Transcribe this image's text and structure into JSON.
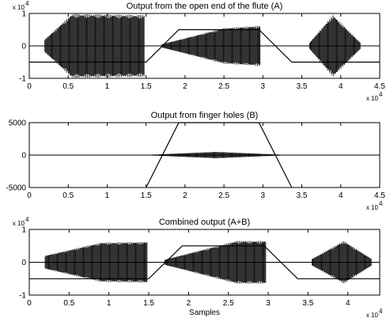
{
  "chart_data": [
    {
      "type": "line",
      "title": "Output from the open end of the flute (A)",
      "ylim": [
        -1,
        1
      ],
      "y_multiplier": "x 10",
      "y_exponent": "4",
      "yticks": [
        {
          "value": 1,
          "label": "1"
        },
        {
          "value": 0,
          "label": "0"
        },
        {
          "value": -1,
          "label": "-1"
        }
      ],
      "xlim": [
        0,
        4.5
      ],
      "x_multiplier": "x 10",
      "x_exponent": "4",
      "xticks": [
        {
          "value": 0,
          "label": "0"
        },
        {
          "value": 0.5,
          "label": "0.5"
        },
        {
          "value": 1,
          "label": "1"
        },
        {
          "value": 1.5,
          "label": "1.5"
        },
        {
          "value": 2,
          "label": "2"
        },
        {
          "value": 2.5,
          "label": "2.5"
        },
        {
          "value": 3,
          "label": "3"
        },
        {
          "value": 3.5,
          "label": "3.5"
        },
        {
          "value": 4,
          "label": "4"
        },
        {
          "value": 4.5,
          "label": "4.5"
        }
      ],
      "xlabel": "",
      "envelope_segments": [
        {
          "x0": 0.2,
          "x1": 1.48,
          "amp_start": 0.2,
          "amp_peak": 0.98,
          "rise_end": 0.55,
          "amp_end": 0.95
        },
        {
          "x0": 1.7,
          "x1": 2.97,
          "amp_start": 0.05,
          "amp_peak": 0.55,
          "rise_end": 2.5,
          "amp_end": 0.62
        },
        {
          "x0": 3.6,
          "x1": 4.25,
          "amp_start": 0.1,
          "amp_peak": 0.95,
          "rise_end": 3.9,
          "amp_end": 0.1
        }
      ],
      "control_signal": {
        "x": [
          0,
          1.5,
          1.92,
          2.95,
          3.37,
          4.5
        ],
        "y": [
          -0.5,
          -0.5,
          0.5,
          0.5,
          -0.5,
          -0.5
        ]
      }
    },
    {
      "type": "line",
      "title": "Output from finger holes (B)",
      "ylim": [
        -5000,
        5000
      ],
      "yticks": [
        {
          "value": 5000,
          "label": "5000"
        },
        {
          "value": 0,
          "label": "0"
        },
        {
          "value": -5000,
          "label": "-5000"
        }
      ],
      "xlim": [
        0,
        4.5
      ],
      "x_multiplier": "x 10",
      "x_exponent": "4",
      "xticks": [
        {
          "value": 0,
          "label": "0"
        },
        {
          "value": 0.5,
          "label": "0.5"
        },
        {
          "value": 1,
          "label": "1"
        },
        {
          "value": 1.5,
          "label": "1.5"
        },
        {
          "value": 2,
          "label": "2"
        },
        {
          "value": 2.5,
          "label": "2.5"
        },
        {
          "value": 3,
          "label": "3"
        },
        {
          "value": 3.5,
          "label": "3.5"
        },
        {
          "value": 4,
          "label": "4"
        },
        {
          "value": 4.5,
          "label": "4.5"
        }
      ],
      "xlabel": "",
      "envelope_segments": [
        {
          "x0": 1.5,
          "x1": 3.3,
          "amp_start": 30,
          "amp_peak": 500,
          "rise_end": 2.4,
          "amp_end": 30
        }
      ],
      "control_signal": {
        "x": [
          1.5,
          1.92,
          2.95,
          3.37
        ],
        "y": [
          -5000,
          5000,
          5000,
          -5000
        ]
      }
    },
    {
      "type": "line",
      "title": "Combined output (A+B)",
      "ylim": [
        -1,
        1
      ],
      "y_multiplier": "x 10",
      "y_exponent": "4",
      "yticks": [
        {
          "value": 1,
          "label": "1"
        },
        {
          "value": 0,
          "label": "0"
        },
        {
          "value": -1,
          "label": "-1"
        }
      ],
      "xlim": [
        0,
        4.4
      ],
      "x_multiplier": "x 10",
      "x_exponent": "4",
      "xticks": [
        {
          "value": 0,
          "label": "0"
        },
        {
          "value": 0.5,
          "label": "0.5"
        },
        {
          "value": 1,
          "label": "1"
        },
        {
          "value": 1.5,
          "label": "1.5"
        },
        {
          "value": 2,
          "label": "2"
        },
        {
          "value": 2.5,
          "label": "2.5"
        },
        {
          "value": 3,
          "label": "3"
        },
        {
          "value": 3.5,
          "label": "3.5"
        },
        {
          "value": 4,
          "label": "4"
        }
      ],
      "xlabel": "Samples",
      "envelope_segments": [
        {
          "x0": 0.2,
          "x1": 1.48,
          "amp_start": 0.2,
          "amp_peak": 0.6,
          "rise_end": 0.9,
          "amp_end": 0.62
        },
        {
          "x0": 1.7,
          "x1": 2.97,
          "amp_start": 0.08,
          "amp_peak": 0.65,
          "rise_end": 2.6,
          "amp_end": 0.65
        },
        {
          "x0": 3.55,
          "x1": 4.3,
          "amp_start": 0.1,
          "amp_peak": 0.65,
          "rise_end": 3.95,
          "amp_end": 0.1
        }
      ],
      "control_signal": {
        "x": [
          0,
          1.5,
          1.92,
          2.95,
          3.37,
          4.4
        ],
        "y": [
          -0.5,
          -0.5,
          0.5,
          0.5,
          -0.5,
          -0.5
        ]
      }
    }
  ]
}
